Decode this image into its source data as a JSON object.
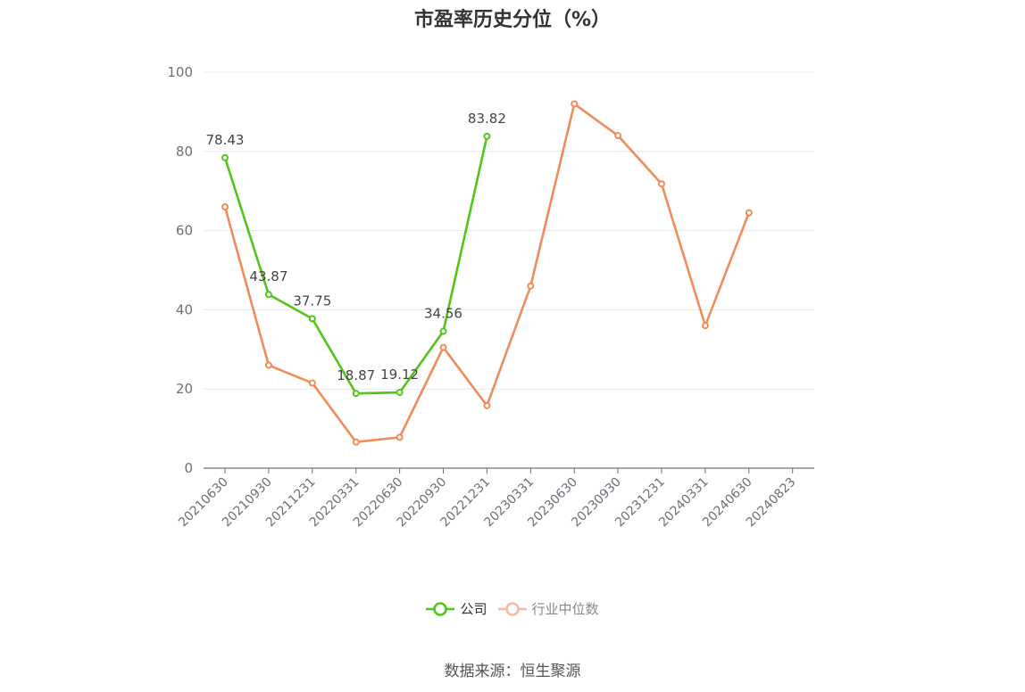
{
  "chart_data": {
    "type": "line",
    "title": "市盈率历史分位（%）",
    "categories": [
      "20210630",
      "20210930",
      "20211231",
      "20220331",
      "20220630",
      "20220930",
      "20221231",
      "20230331",
      "20230630",
      "20230930",
      "20231231",
      "20240331",
      "20240630",
      "20240823"
    ],
    "ylim": [
      0,
      100
    ],
    "yticks": [
      0,
      20,
      40,
      60,
      80,
      100
    ],
    "grid": true,
    "legend_position": "bottom",
    "series": [
      {
        "name": "公司",
        "color": "#52c41a",
        "show_labels": true,
        "values": [
          78.43,
          43.87,
          37.75,
          18.87,
          19.12,
          34.56,
          83.82,
          null,
          null,
          null,
          null,
          null,
          null,
          null
        ]
      },
      {
        "name": "行业中位数",
        "color": "#f28b5a",
        "legend_color": "#f7b9a1",
        "show_labels": false,
        "values": [
          66,
          26,
          21.5,
          6.6,
          7.8,
          30.5,
          15.8,
          46,
          92,
          84,
          71.8,
          36,
          64.5,
          null
        ]
      }
    ]
  },
  "source": "数据来源：恒生聚源"
}
